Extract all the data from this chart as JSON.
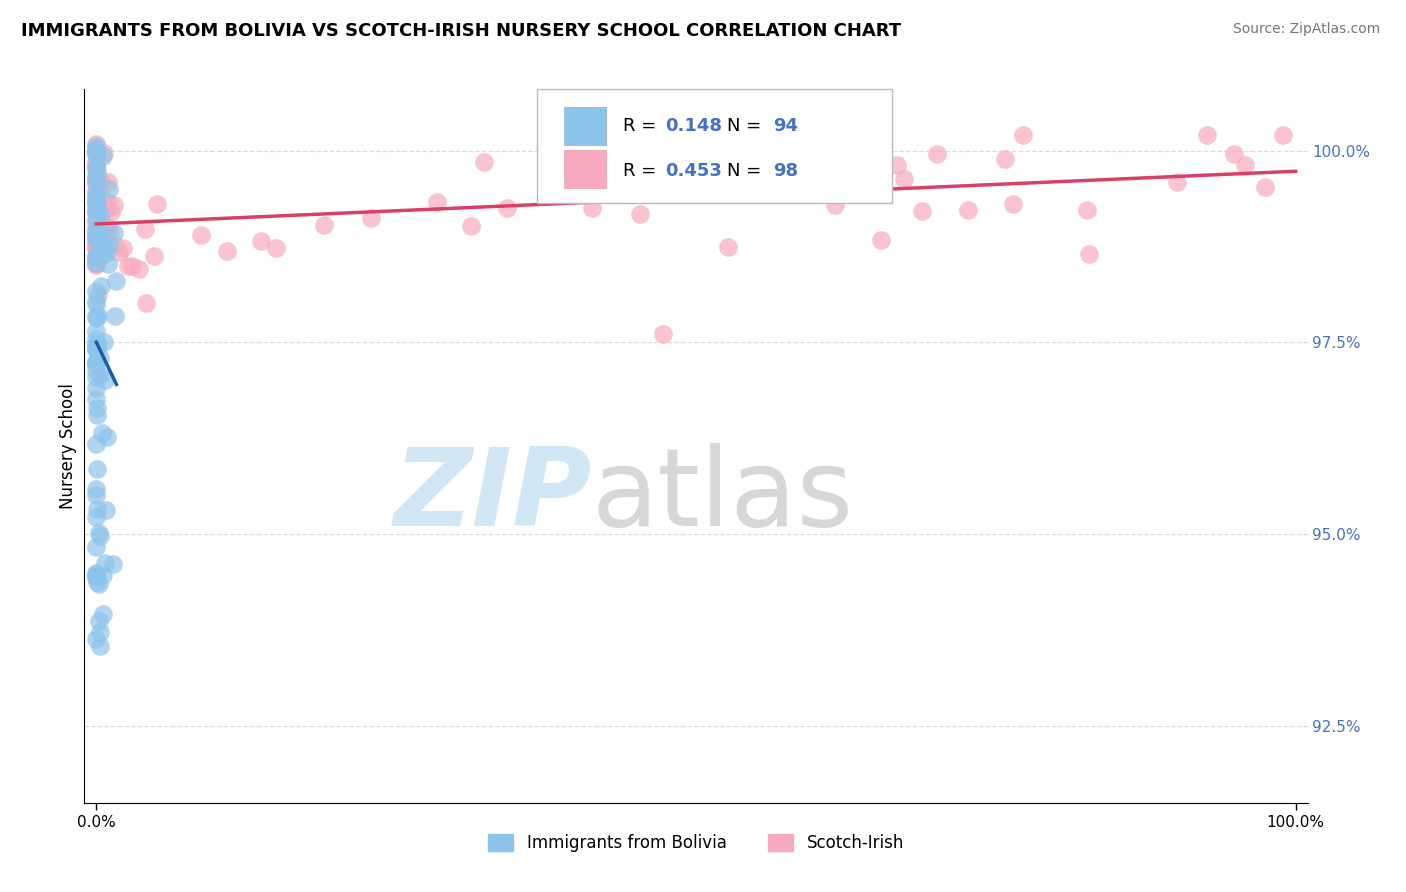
{
  "title": "IMMIGRANTS FROM BOLIVIA VS SCOTCH-IRISH NURSERY SCHOOL CORRELATION CHART",
  "source": "Source: ZipAtlas.com",
  "ylabel": "Nursery School",
  "y_ticks": [
    92.5,
    95.0,
    97.5,
    100.0
  ],
  "y_tick_labels_right": [
    "92.5%",
    "95.0%",
    "97.5%",
    "100.0%"
  ],
  "legend_bottom": [
    "Immigrants from Bolivia",
    "Scotch-Irish"
  ],
  "blue_scatter_color": "#8DC4EC",
  "pink_scatter_color": "#F7AABD",
  "blue_line_color": "#1B5EA8",
  "pink_line_color": "#D84068",
  "right_tick_color": "#4472C4",
  "R_N_color": "#4472C4",
  "R_blue": 0.148,
  "N_blue": 94,
  "R_pink": 0.453,
  "N_pink": 98,
  "watermark_zip_color": "#C8E3F5",
  "watermark_atlas_color": "#CACACA",
  "grid_color": "#DDDDDD",
  "title_fontsize": 13,
  "source_fontsize": 10,
  "tick_fontsize": 11,
  "legend_box_color": "#EEEEEE",
  "xlim_left": -1,
  "xlim_right": 101,
  "ylim_bottom": 91.5,
  "ylim_top": 100.8
}
